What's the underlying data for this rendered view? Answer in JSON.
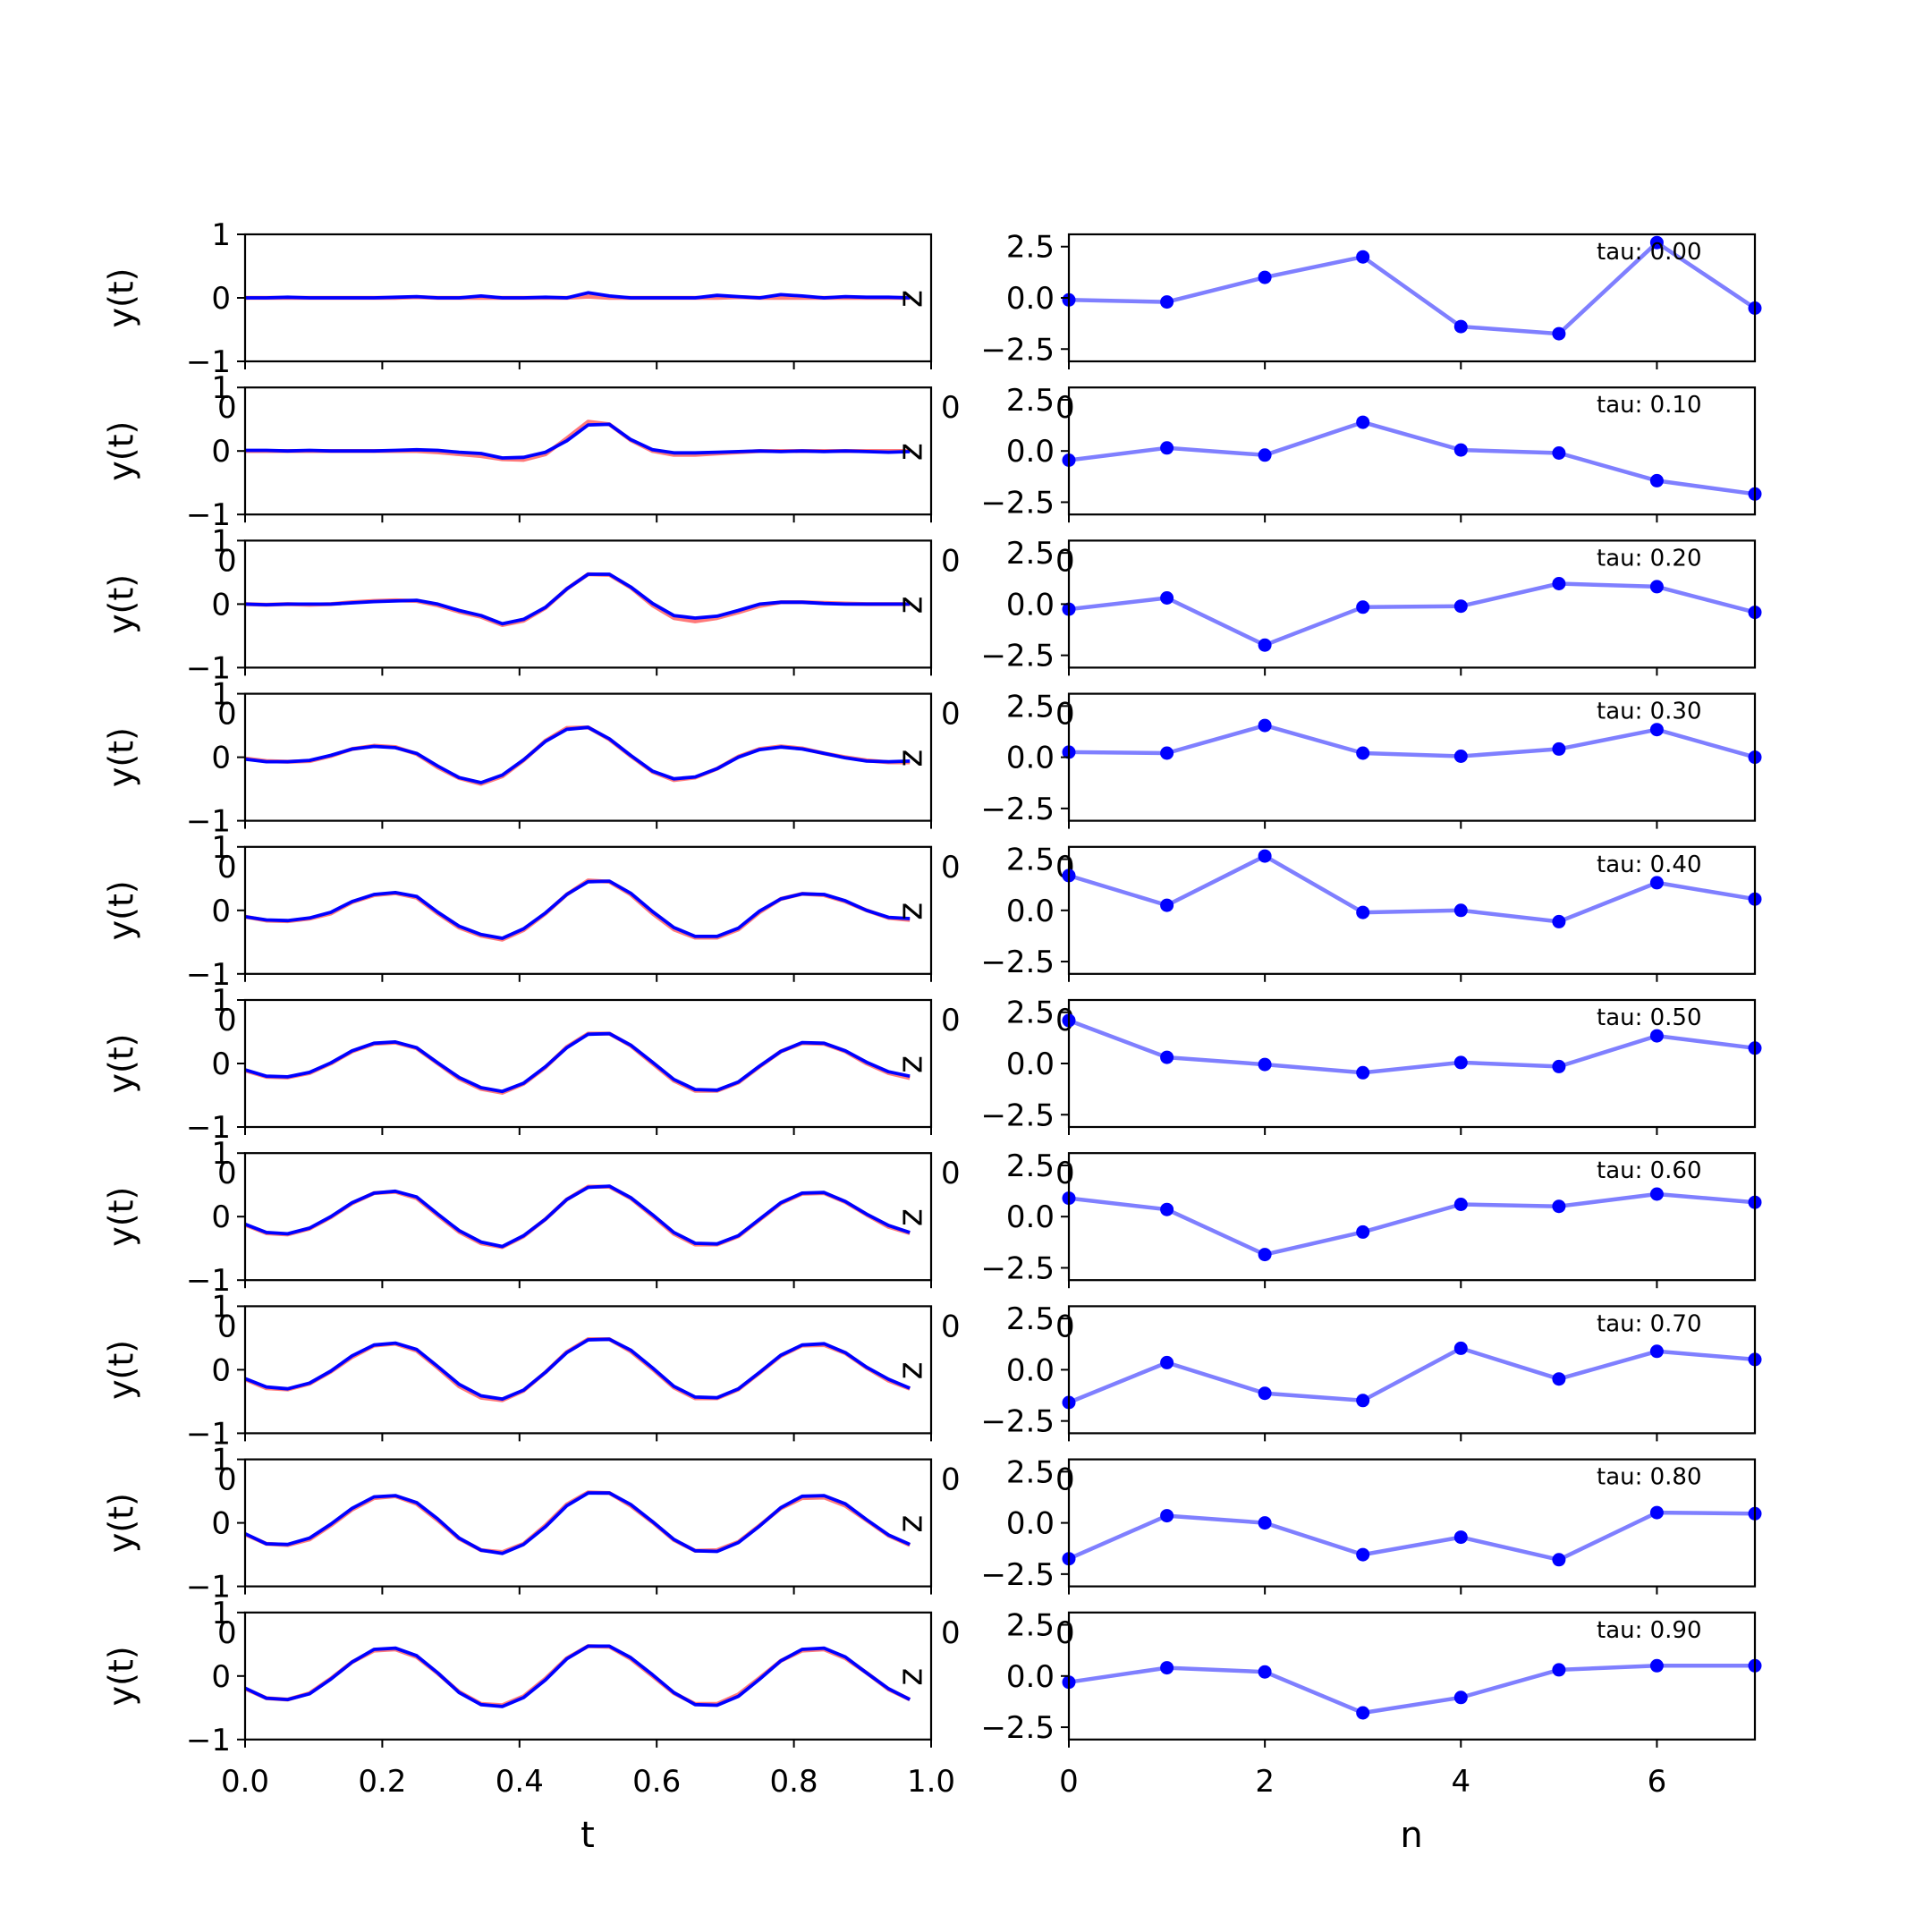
{
  "chart_data": [
    {
      "type": "line",
      "panel": "left",
      "xlabel": "t",
      "ylabel": "y(t)",
      "side_label": "z",
      "xlim": [
        0.0,
        1.0
      ],
      "ylim": [
        -1,
        1
      ],
      "xticks": [
        "0.0",
        "0.2",
        "0.4",
        "0.6",
        "0.8",
        "1.0"
      ],
      "yticks": [
        "-1",
        "0",
        "1"
      ],
      "overlap_label": "0",
      "series_colors": {
        "target": "#ff4d4d",
        "prediction": "#0000ff"
      },
      "x": [
        0.0,
        0.031,
        0.062,
        0.094,
        0.125,
        0.156,
        0.188,
        0.219,
        0.25,
        0.281,
        0.312,
        0.344,
        0.375,
        0.406,
        0.438,
        0.469,
        0.5,
        0.531,
        0.562,
        0.594,
        0.625,
        0.656,
        0.688,
        0.719,
        0.75,
        0.781,
        0.812,
        0.844,
        0.875,
        0.906,
        0.938,
        0.969
      ],
      "rows": [
        {
          "target": [
            0.0,
            0.0,
            0.0,
            0.0,
            0.0,
            0.0,
            0.0,
            0.0,
            0.01,
            0.0,
            0.0,
            0.0,
            0.0,
            0.0,
            0.0,
            0.0,
            0.02,
            0.0,
            0.0,
            0.0,
            0.0,
            0.0,
            0.0,
            0.01,
            0.0,
            0.0,
            0.0,
            0.0,
            0.0,
            0.0,
            0.0,
            0.0
          ],
          "prediction": [
            0.0,
            0.0,
            0.01,
            0.0,
            0.0,
            0.0,
            0.0,
            0.01,
            0.02,
            0.0,
            0.0,
            0.03,
            0.0,
            0.0,
            0.01,
            0.0,
            0.08,
            0.03,
            0.0,
            0.0,
            0.0,
            0.0,
            0.04,
            0.02,
            0.0,
            0.05,
            0.03,
            0.0,
            0.02,
            0.01,
            0.01,
            0.0
          ]
        },
        {
          "target": [
            0.0,
            0.0,
            0.0,
            0.0,
            0.0,
            0.0,
            0.0,
            0.0,
            0.0,
            -0.02,
            -0.05,
            -0.08,
            -0.13,
            -0.14,
            -0.05,
            0.2,
            0.46,
            0.42,
            0.17,
            0.0,
            -0.06,
            -0.06,
            -0.04,
            -0.02,
            0.0,
            0.0,
            0.0,
            0.0,
            0.0,
            0.0,
            0.0,
            0.0
          ],
          "prediction": [
            0.01,
            0.01,
            0.0,
            0.01,
            0.0,
            0.0,
            0.0,
            0.01,
            0.02,
            0.01,
            -0.02,
            -0.04,
            -0.11,
            -0.1,
            -0.02,
            0.16,
            0.41,
            0.42,
            0.18,
            0.02,
            -0.03,
            -0.03,
            -0.02,
            -0.01,
            0.0,
            -0.01,
            0.0,
            -0.01,
            0.0,
            -0.01,
            -0.02,
            -0.01
          ]
        },
        {
          "target": [
            0.0,
            -0.01,
            0.0,
            -0.01,
            0.0,
            0.03,
            0.05,
            0.06,
            0.05,
            -0.02,
            -0.12,
            -0.2,
            -0.33,
            -0.26,
            -0.06,
            0.24,
            0.47,
            0.46,
            0.26,
            -0.02,
            -0.22,
            -0.27,
            -0.22,
            -0.13,
            -0.03,
            0.03,
            0.03,
            0.02,
            0.01,
            0.0,
            0.0,
            0.0
          ],
          "prediction": [
            0.0,
            -0.01,
            0.0,
            0.0,
            0.0,
            0.02,
            0.04,
            0.05,
            0.06,
            0.0,
            -0.1,
            -0.18,
            -0.31,
            -0.24,
            -0.05,
            0.24,
            0.47,
            0.47,
            0.27,
            0.01,
            -0.18,
            -0.22,
            -0.19,
            -0.1,
            0.0,
            0.03,
            0.03,
            0.01,
            0.0,
            0.0,
            0.0,
            0.0
          ]
        },
        {
          "target": [
            -0.02,
            -0.06,
            -0.07,
            -0.06,
            0.02,
            0.13,
            0.18,
            0.16,
            0.05,
            -0.16,
            -0.33,
            -0.42,
            -0.3,
            -0.05,
            0.26,
            0.46,
            0.47,
            0.28,
            0.02,
            -0.23,
            -0.36,
            -0.32,
            -0.18,
            0.01,
            0.13,
            0.17,
            0.14,
            0.06,
            0.0,
            -0.05,
            -0.08,
            -0.08
          ],
          "prediction": [
            -0.03,
            -0.07,
            -0.07,
            -0.05,
            0.03,
            0.13,
            0.17,
            0.15,
            0.06,
            -0.14,
            -0.32,
            -0.4,
            -0.28,
            -0.04,
            0.25,
            0.44,
            0.47,
            0.29,
            0.03,
            -0.22,
            -0.34,
            -0.31,
            -0.18,
            0.0,
            0.12,
            0.16,
            0.13,
            0.06,
            -0.01,
            -0.06,
            -0.07,
            -0.06
          ]
        },
        {
          "target": [
            -0.1,
            -0.16,
            -0.17,
            -0.13,
            -0.05,
            0.13,
            0.24,
            0.27,
            0.2,
            -0.05,
            -0.27,
            -0.4,
            -0.46,
            -0.31,
            -0.05,
            0.25,
            0.47,
            0.45,
            0.25,
            -0.05,
            -0.3,
            -0.43,
            -0.43,
            -0.3,
            -0.03,
            0.18,
            0.26,
            0.24,
            0.14,
            0.0,
            -0.12,
            -0.15
          ],
          "prediction": [
            -0.1,
            -0.15,
            -0.16,
            -0.12,
            -0.03,
            0.14,
            0.25,
            0.28,
            0.22,
            -0.03,
            -0.25,
            -0.38,
            -0.44,
            -0.29,
            -0.04,
            0.25,
            0.45,
            0.46,
            0.27,
            -0.02,
            -0.27,
            -0.41,
            -0.41,
            -0.28,
            -0.01,
            0.18,
            0.26,
            0.25,
            0.15,
            0.0,
            -0.11,
            -0.13
          ]
        },
        {
          "target": [
            -0.11,
            -0.21,
            -0.22,
            -0.15,
            0.0,
            0.19,
            0.31,
            0.33,
            0.24,
            0.0,
            -0.24,
            -0.4,
            -0.46,
            -0.32,
            -0.06,
            0.26,
            0.47,
            0.47,
            0.28,
            0.0,
            -0.27,
            -0.43,
            -0.43,
            -0.3,
            -0.05,
            0.19,
            0.32,
            0.31,
            0.19,
            0.0,
            -0.15,
            -0.23
          ],
          "prediction": [
            -0.1,
            -0.2,
            -0.21,
            -0.14,
            0.01,
            0.2,
            0.32,
            0.34,
            0.25,
            0.01,
            -0.22,
            -0.38,
            -0.44,
            -0.31,
            -0.05,
            0.25,
            0.46,
            0.47,
            0.29,
            0.02,
            -0.25,
            -0.41,
            -0.42,
            -0.29,
            -0.04,
            0.19,
            0.33,
            0.32,
            0.2,
            0.02,
            -0.13,
            -0.2
          ]
        },
        {
          "target": [
            -0.13,
            -0.26,
            -0.28,
            -0.19,
            -0.01,
            0.21,
            0.37,
            0.39,
            0.29,
            0.02,
            -0.24,
            -0.42,
            -0.48,
            -0.31,
            -0.04,
            0.27,
            0.47,
            0.47,
            0.29,
            0.01,
            -0.27,
            -0.44,
            -0.44,
            -0.31,
            -0.05,
            0.21,
            0.36,
            0.37,
            0.23,
            0.03,
            -0.16,
            -0.26
          ],
          "prediction": [
            -0.12,
            -0.25,
            -0.27,
            -0.18,
            0.0,
            0.22,
            0.37,
            0.4,
            0.31,
            0.04,
            -0.22,
            -0.4,
            -0.47,
            -0.3,
            -0.04,
            0.27,
            0.46,
            0.48,
            0.3,
            0.03,
            -0.25,
            -0.42,
            -0.43,
            -0.3,
            -0.04,
            0.22,
            0.37,
            0.38,
            0.24,
            0.04,
            -0.14,
            -0.25
          ]
        },
        {
          "target": [
            -0.15,
            -0.29,
            -0.31,
            -0.22,
            -0.03,
            0.2,
            0.38,
            0.41,
            0.3,
            0.03,
            -0.26,
            -0.44,
            -0.48,
            -0.33,
            -0.04,
            0.28,
            0.48,
            0.48,
            0.29,
            0.01,
            -0.28,
            -0.45,
            -0.45,
            -0.31,
            -0.05,
            0.22,
            0.38,
            0.39,
            0.26,
            0.03,
            -0.17,
            -0.3
          ],
          "prediction": [
            -0.14,
            -0.27,
            -0.3,
            -0.21,
            -0.02,
            0.22,
            0.39,
            0.42,
            0.32,
            0.05,
            -0.23,
            -0.41,
            -0.46,
            -0.32,
            -0.04,
            0.27,
            0.47,
            0.48,
            0.31,
            0.03,
            -0.26,
            -0.43,
            -0.44,
            -0.3,
            -0.04,
            0.23,
            0.39,
            0.41,
            0.27,
            0.04,
            -0.15,
            -0.29
          ]
        },
        {
          "target": [
            -0.18,
            -0.33,
            -0.35,
            -0.26,
            -0.04,
            0.21,
            0.39,
            0.42,
            0.3,
            0.04,
            -0.25,
            -0.43,
            -0.46,
            -0.33,
            -0.04,
            0.29,
            0.48,
            0.47,
            0.27,
            0.01,
            -0.27,
            -0.44,
            -0.43,
            -0.3,
            -0.04,
            0.23,
            0.39,
            0.4,
            0.27,
            0.04,
            -0.2,
            -0.35
          ],
          "prediction": [
            -0.17,
            -0.33,
            -0.34,
            -0.24,
            -0.02,
            0.23,
            0.41,
            0.43,
            0.32,
            0.06,
            -0.24,
            -0.43,
            -0.48,
            -0.34,
            -0.06,
            0.27,
            0.47,
            0.47,
            0.29,
            0.02,
            -0.26,
            -0.44,
            -0.45,
            -0.31,
            -0.05,
            0.24,
            0.42,
            0.43,
            0.3,
            0.05,
            -0.19,
            -0.34
          ]
        },
        {
          "target": [
            -0.2,
            -0.35,
            -0.37,
            -0.27,
            -0.04,
            0.22,
            0.4,
            0.42,
            0.3,
            0.04,
            -0.25,
            -0.44,
            -0.46,
            -0.32,
            -0.04,
            0.28,
            0.47,
            0.46,
            0.27,
            0.0,
            -0.27,
            -0.44,
            -0.44,
            -0.29,
            -0.03,
            0.24,
            0.4,
            0.42,
            0.28,
            0.05,
            -0.21,
            -0.37
          ],
          "prediction": [
            -0.19,
            -0.35,
            -0.37,
            -0.28,
            -0.05,
            0.22,
            0.42,
            0.44,
            0.32,
            0.05,
            -0.26,
            -0.45,
            -0.48,
            -0.34,
            -0.06,
            0.27,
            0.47,
            0.47,
            0.29,
            0.02,
            -0.26,
            -0.45,
            -0.46,
            -0.32,
            -0.05,
            0.24,
            0.42,
            0.44,
            0.3,
            0.05,
            -0.2,
            -0.37
          ]
        }
      ]
    },
    {
      "type": "line",
      "panel": "right",
      "xlabel": "n",
      "xlim": [
        0,
        7
      ],
      "ylim": [
        -3.1,
        3.1
      ],
      "xticks": [
        "0",
        "2",
        "4",
        "6"
      ],
      "yticks": [
        "2.5",
        "0.0",
        "-2.5"
      ],
      "line_color": "#0000ff",
      "x": [
        0,
        1,
        2,
        3,
        4,
        5,
        6,
        7
      ],
      "rows": [
        {
          "label": "tau: 0.00",
          "values": [
            -0.1,
            -0.2,
            1.0,
            2.0,
            -1.4,
            -1.75,
            2.7,
            -0.5
          ]
        },
        {
          "label": "tau: 0.10",
          "values": [
            -0.45,
            0.15,
            -0.2,
            1.4,
            0.05,
            -0.1,
            -1.45,
            -2.1
          ]
        },
        {
          "label": "tau: 0.20",
          "values": [
            -0.25,
            0.3,
            -2.0,
            -0.15,
            -0.1,
            1.0,
            0.85,
            -0.4
          ]
        },
        {
          "label": "tau: 0.30",
          "values": [
            0.25,
            0.2,
            1.55,
            0.2,
            0.05,
            0.4,
            1.35,
            0.0
          ]
        },
        {
          "label": "tau: 0.40",
          "values": [
            1.7,
            0.25,
            2.65,
            -0.1,
            0.0,
            -0.55,
            1.35,
            0.55
          ]
        },
        {
          "label": "tau: 0.50",
          "values": [
            2.1,
            0.3,
            -0.05,
            -0.45,
            0.05,
            -0.15,
            1.35,
            0.75
          ]
        },
        {
          "label": "tau: 0.60",
          "values": [
            0.9,
            0.35,
            -1.85,
            -0.75,
            0.6,
            0.5,
            1.1,
            0.7
          ]
        },
        {
          "label": "tau: 0.70",
          "values": [
            -1.6,
            0.35,
            -1.15,
            -1.5,
            1.05,
            -0.45,
            0.9,
            0.5
          ]
        },
        {
          "label": "tau: 0.80",
          "values": [
            -1.75,
            0.35,
            0.0,
            -1.55,
            -0.7,
            -1.8,
            0.5,
            0.45
          ]
        },
        {
          "label": "tau: 0.90",
          "values": [
            -0.3,
            0.4,
            0.2,
            -1.8,
            -1.05,
            0.3,
            0.5,
            0.5
          ]
        }
      ]
    }
  ]
}
